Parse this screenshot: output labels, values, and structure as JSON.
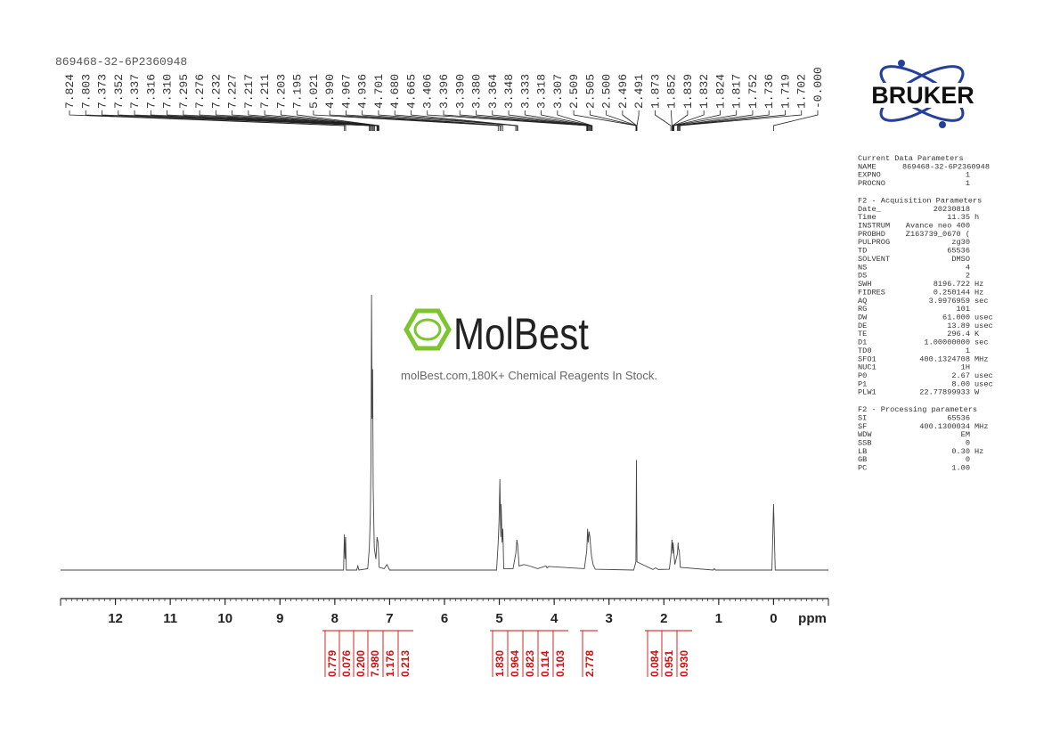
{
  "chart_data": {
    "type": "line",
    "title": "869468-32-6P2360948",
    "x_label": "ppm",
    "x": [
      13,
      8.0,
      7.84,
      7.825,
      7.813,
      7.803,
      7.79,
      7.6,
      7.58,
      7.56,
      7.4,
      7.37,
      7.352,
      7.34,
      7.33,
      7.32,
      7.31,
      7.3,
      7.28,
      7.25,
      7.23,
      7.21,
      7.19,
      7.1,
      7.05,
      7.0,
      5.05,
      5.021,
      5.005,
      4.99,
      4.975,
      4.967,
      4.95,
      4.936,
      4.92,
      4.75,
      4.7,
      4.68,
      4.665,
      4.64,
      4.55,
      4.45,
      4.3,
      4.15,
      4.13,
      4.1,
      3.45,
      3.406,
      3.39,
      3.38,
      3.364,
      3.348,
      3.333,
      3.318,
      3.29,
      3.25,
      2.55,
      2.51,
      2.505,
      2.5,
      2.495,
      2.49,
      2.2,
      2.15,
      2.1,
      1.9,
      1.873,
      1.86,
      1.852,
      1.839,
      1.832,
      1.8,
      1.752,
      1.74,
      1.736,
      1.719,
      1.7,
      1.1,
      1.08,
      1.06,
      0.03,
      0,
      -0.03,
      -1
    ],
    "values": [
      0,
      0,
      0,
      13,
      4,
      12,
      0,
      0,
      1.5,
      0,
      0.5,
      8,
      20,
      40,
      100,
      55,
      73,
      30,
      8,
      4,
      12,
      10,
      1,
      0.5,
      2,
      0,
      0,
      10,
      18,
      33,
      12,
      24,
      10,
      15,
      0.5,
      0.5,
      6,
      11,
      9,
      1.5,
      2,
      1.5,
      0.5,
      1.5,
      0.8,
      1.3,
      0.5,
      7,
      15,
      10,
      14,
      12,
      8,
      5,
      2,
      0.3,
      0,
      3,
      20,
      40,
      20,
      3,
      0.2,
      0.8,
      0.2,
      0.3,
      5,
      8,
      11,
      6,
      10,
      2,
      6,
      10,
      8,
      7,
      1,
      0,
      0.5,
      0,
      0,
      24,
      0,
      0
    ],
    "color": "#444444",
    "xlim": [
      13,
      -1
    ],
    "ylim": [
      0,
      100
    ],
    "xticks": [
      12,
      11,
      10,
      9,
      8,
      7,
      6,
      5,
      4,
      3,
      2,
      1,
      0
    ],
    "peak_labels": [
      "7.824",
      "7.803",
      "7.373",
      "7.352",
      "7.337",
      "7.316",
      "7.310",
      "7.295",
      "7.276",
      "7.232",
      "7.227",
      "7.217",
      "7.211",
      "7.203",
      "7.195",
      "5.021",
      "4.990",
      "4.967",
      "4.936",
      "4.701",
      "4.680",
      "4.665",
      "3.406",
      "3.396",
      "3.390",
      "3.380",
      "3.364",
      "3.348",
      "3.333",
      "3.318",
      "3.307",
      "2.509",
      "2.505",
      "2.500",
      "2.496",
      "2.491",
      "1.873",
      "1.852",
      "1.839",
      "1.832",
      "1.824",
      "1.817",
      "1.752",
      "1.736",
      "1.719",
      "1.702",
      "-0.000"
    ],
    "integrals": [
      "0.779",
      "0.076",
      "0.200",
      "7.980",
      "1.176",
      "0.213",
      "1.830",
      "0.964",
      "0.823",
      "0.114",
      "0.103",
      "2.778",
      "0.084",
      "0.951",
      "0.930"
    ],
    "integral_color": "#cc1111"
  },
  "logo": "BRUKER",
  "watermark": {
    "name": "MolBest",
    "tagline": "molBest.com,180K+ Chemical Reagents In Stock."
  },
  "parameters": [
    {
      "heading": "Current Data Parameters",
      "rows": [
        [
          "NAME",
          "869468-32-6P2360948"
        ],
        [
          "EXPNO",
          "1"
        ],
        [
          "PROCNO",
          "1"
        ]
      ]
    },
    {
      "heading": "F2 - Acquisition Parameters",
      "rows": [
        [
          "Date_",
          "20230818"
        ],
        [
          "Time",
          "11.35",
          "h"
        ],
        [
          "INSTRUM",
          "Avance neo 400"
        ],
        [
          "PROBHD",
          "Z163739_0670 ("
        ],
        [
          "PULPROG",
          "zg30"
        ],
        [
          "TD",
          "65536"
        ],
        [
          "SOLVENT",
          "DMSO"
        ],
        [
          "NS",
          "4"
        ],
        [
          "DS",
          "2"
        ],
        [
          "SWH",
          "8196.722",
          "Hz"
        ],
        [
          "FIDRES",
          "0.250144",
          "Hz"
        ],
        [
          "AQ",
          "3.9976959",
          "sec"
        ],
        [
          "RG",
          "101"
        ],
        [
          "DW",
          "61.000",
          "usec"
        ],
        [
          "DE",
          "13.89",
          "usec"
        ],
        [
          "TE",
          "296.4",
          "K"
        ],
        [
          "D1",
          "1.00000000",
          "sec"
        ],
        [
          "TD0",
          "1"
        ],
        [
          "SFO1",
          "400.1324708",
          "MHz"
        ],
        [
          "NUC1",
          "1H"
        ],
        [
          "P0",
          "2.67",
          "usec"
        ],
        [
          "P1",
          "8.00",
          "usec"
        ],
        [
          "PLW1",
          "22.77899933",
          "W"
        ]
      ]
    },
    {
      "heading": "F2 - Processing parameters",
      "rows": [
        [
          "SI",
          "65536"
        ],
        [
          "SF",
          "400.1300034",
          "MHz"
        ],
        [
          "WDW",
          "EM"
        ],
        [
          "SSB",
          "0"
        ],
        [
          "LB",
          "0.30",
          "Hz"
        ],
        [
          "GB",
          "0"
        ],
        [
          "PC",
          "1.00"
        ]
      ]
    }
  ]
}
